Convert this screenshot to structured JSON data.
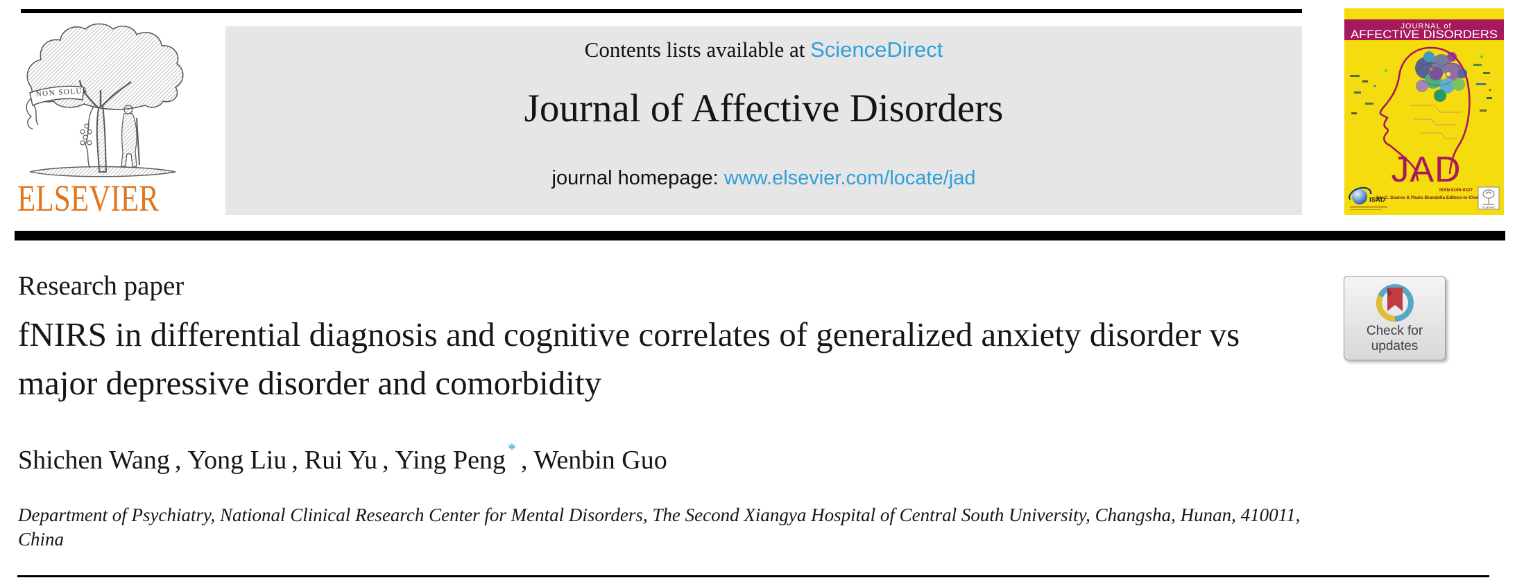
{
  "publisher_logo": {
    "wordmark": "ELSEVIER",
    "banner_motto": "NON SOLUS"
  },
  "journal_header": {
    "contents_prefix": "Contents lists available at ",
    "contents_link": "ScienceDirect",
    "journal_title": "Journal of Affective Disorders",
    "homepage_prefix": "journal homepage: ",
    "homepage_link": "www.elsevier.com/locate/jad"
  },
  "cover": {
    "masthead_line1": "JOURNAL of",
    "masthead_line2": "AFFECTIVE DISORDERS",
    "monogram": "JAD",
    "issn": "ISSN 0165-0327",
    "editors_line": "Jair C. Soares & Paolo Brambilla Editors-in-Chief",
    "society_acronym": "ISAD",
    "publisher_mini": "ELSEVIER"
  },
  "article": {
    "type_label": "Research paper",
    "title": "fNIRS in differential diagnosis and cognitive correlates of generalized anxiety disorder vs major depressive disorder and comorbidity",
    "authors": [
      {
        "name": "Shichen Wang",
        "marker": ""
      },
      {
        "name": "Yong Liu",
        "marker": ""
      },
      {
        "name": "Rui Yu",
        "marker": ""
      },
      {
        "name": "Ying Peng",
        "marker": "*"
      },
      {
        "name": "Wenbin Guo",
        "marker": ""
      }
    ],
    "affiliation": "Department of Psychiatry, National Clinical Research Center for Mental Disorders, The Second Xiangya Hospital of Central South University, Changsha, Hunan, 410011, China"
  },
  "badge": {
    "line1": "Check for",
    "line2": "updates"
  },
  "colors": {
    "link_blue": "#2f9fd9",
    "elsevier_orange": "#e2751d",
    "header_gray": "#e6e6e6",
    "cover_yellow": "#f5dc0e",
    "cover_magenta": "#a6195c",
    "cover_dark_red": "#7a1220",
    "badge_red": "#c23a42",
    "badge_ring_blue": "#57a7c7",
    "badge_ring_yellow": "#e3bc33",
    "text_black": "#161616"
  }
}
